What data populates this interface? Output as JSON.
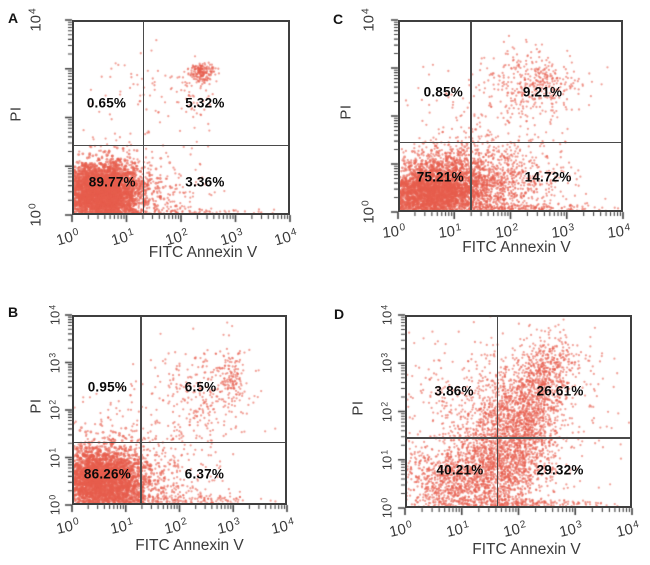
{
  "figure": {
    "title": "Annexin V-FITC / PI apoptosis flow cytometry dot plots",
    "colors": {
      "dots": "#e75d4d",
      "axis": "#3f3f3f",
      "gate_lines": "#4a4a4a",
      "text": "#0a0a0a"
    }
  },
  "chart_data": [
    {
      "type": "scatter",
      "panel": "A",
      "xlabel": "FITC Annexin V",
      "ylabel": "PI",
      "x_scale": "log",
      "y_scale": "log",
      "x_range": [
        1,
        10000
      ],
      "y_range": [
        1,
        10000
      ],
      "x_tick_labels": [
        {
          "label": "10^0",
          "decade": 0
        },
        {
          "label": "10^1",
          "decade": 1
        },
        {
          "label": "10^2",
          "decade": 2
        },
        {
          "label": "10^3",
          "decade": 3
        },
        {
          "label": "10^4",
          "decade": 4
        }
      ],
      "y_tick_labels": [
        {
          "label": "10^0",
          "decade": 0
        },
        {
          "label": "10^4",
          "decade": 4
        }
      ],
      "gate": {
        "x_decade": 1.3,
        "y_decade": 1.44
      },
      "quadrants": {
        "upper_left": {
          "label": "0.65%",
          "value": 0.65
        },
        "upper_right": {
          "label": "5.32%",
          "value": 5.32
        },
        "lower_left": {
          "label": "89.77%",
          "value": 89.77
        },
        "lower_right": {
          "label": "3.36%",
          "value": 3.36
        }
      },
      "point_clusters": [
        {
          "n": 3000,
          "cx": 0.55,
          "cy": 0.45,
          "sx": 0.36,
          "sy": 0.3
        },
        {
          "n": 700,
          "cx": 0.75,
          "cy": 0.55,
          "sx": 0.62,
          "sy": 0.45
        },
        {
          "n": 70,
          "cx": 1.7,
          "cy": 0.35,
          "sx": 0.45,
          "sy": 0.28
        },
        {
          "n": 110,
          "cx": 2.0,
          "cy": 0.06,
          "sx": 0.85,
          "sy": 0.04
        },
        {
          "n": 170,
          "cx": 2.38,
          "cy": 2.92,
          "sx": 0.12,
          "sy": 0.1
        },
        {
          "n": 55,
          "cx": 2.25,
          "cy": 2.5,
          "sx": 0.22,
          "sy": 0.38
        },
        {
          "n": 48,
          "cx": 1.5,
          "cy": 2.45,
          "sx": 0.45,
          "sy": 0.45
        },
        {
          "n": 12,
          "cx": 0.75,
          "cy": 2.5,
          "sx": 0.4,
          "sy": 0.35
        }
      ]
    },
    {
      "type": "scatter",
      "panel": "B",
      "xlabel": "FITC Annexin V",
      "ylabel": "PI",
      "x_scale": "log",
      "y_scale": "log",
      "x_range": [
        1,
        10000
      ],
      "y_range": [
        1,
        10000
      ],
      "x_tick_labels": [
        {
          "label": "10^0",
          "decade": 0
        },
        {
          "label": "10^1",
          "decade": 1
        },
        {
          "label": "10^2",
          "decade": 2
        },
        {
          "label": "10^3",
          "decade": 3
        },
        {
          "label": "10^4",
          "decade": 4
        }
      ],
      "y_tick_labels": [
        {
          "label": "10^0",
          "decade": 0
        },
        {
          "label": "10^1",
          "decade": 1
        },
        {
          "label": "10^2",
          "decade": 2
        },
        {
          "label": "10^3",
          "decade": 3
        },
        {
          "label": "10^4",
          "decade": 4
        }
      ],
      "gate": {
        "x_decade": 1.27,
        "y_decade": 1.33
      },
      "quadrants": {
        "upper_left": {
          "label": "0.95%",
          "value": 0.95
        },
        "upper_right": {
          "label": "6.5%",
          "value": 6.5
        },
        "lower_left": {
          "label": "86.26%",
          "value": 86.26
        },
        "lower_right": {
          "label": "6.37%",
          "value": 6.37
        }
      },
      "point_clusters": [
        {
          "n": 2600,
          "cx": 0.55,
          "cy": 0.5,
          "sx": 0.4,
          "sy": 0.36
        },
        {
          "n": 700,
          "cx": 0.8,
          "cy": 0.65,
          "sx": 0.7,
          "sy": 0.55
        },
        {
          "n": 200,
          "cx": 1.9,
          "cy": 0.1,
          "sx": 0.85,
          "sy": 0.08
        },
        {
          "n": 90,
          "cx": 1.8,
          "cy": 0.5,
          "sx": 0.5,
          "sy": 0.35
        },
        {
          "n": 240,
          "cx": 2.5,
          "cy": 2.4,
          "sx": 0.5,
          "sy": 0.5
        },
        {
          "n": 110,
          "cx": 2.95,
          "cy": 2.7,
          "sx": 0.13,
          "sy": 0.25
        },
        {
          "n": 90,
          "cx": 2.0,
          "cy": 1.6,
          "sx": 0.55,
          "sy": 0.6
        },
        {
          "n": 28,
          "cx": 0.85,
          "cy": 2.1,
          "sx": 0.5,
          "sy": 0.45
        }
      ]
    },
    {
      "type": "scatter",
      "panel": "C",
      "xlabel": "FITC Annexin V",
      "ylabel": "PI",
      "x_scale": "log",
      "y_scale": "log",
      "x_range": [
        1,
        10000
      ],
      "y_range": [
        1,
        10000
      ],
      "x_tick_labels": [
        {
          "label": "10^0",
          "decade": 0
        },
        {
          "label": "10^1",
          "decade": 1
        },
        {
          "label": "10^2",
          "decade": 2
        },
        {
          "label": "10^3",
          "decade": 3
        },
        {
          "label": "10^4",
          "decade": 4
        }
      ],
      "y_tick_labels": [
        {
          "label": "10^0",
          "decade": 0
        },
        {
          "label": "10^4",
          "decade": 4
        }
      ],
      "gate": {
        "x_decade": 1.28,
        "y_decade": 1.46
      },
      "quadrants": {
        "upper_left": {
          "label": "0.85%",
          "value": 0.85
        },
        "upper_right": {
          "label": "9.21%",
          "value": 9.21
        },
        "lower_left": {
          "label": "75.21%",
          "value": 75.21
        },
        "lower_right": {
          "label": "14.72%",
          "value": 14.72
        }
      },
      "point_clusters": [
        {
          "n": 2200,
          "cx": 0.6,
          "cy": 0.4,
          "sx": 0.45,
          "sy": 0.3
        },
        {
          "n": 1000,
          "cx": 1.45,
          "cy": 0.6,
          "sx": 0.5,
          "sy": 0.38
        },
        {
          "n": 350,
          "cx": 1.05,
          "cy": 1.05,
          "sx": 0.6,
          "sy": 0.3
        },
        {
          "n": 180,
          "cx": 2.4,
          "cy": 0.6,
          "sx": 0.5,
          "sy": 0.4
        },
        {
          "n": 220,
          "cx": 2.2,
          "cy": 0.07,
          "sx": 0.75,
          "sy": 0.05
        },
        {
          "n": 330,
          "cx": 2.45,
          "cy": 2.7,
          "sx": 0.42,
          "sy": 0.33
        },
        {
          "n": 140,
          "cx": 1.95,
          "cy": 1.9,
          "sx": 0.5,
          "sy": 0.55
        },
        {
          "n": 32,
          "cx": 0.75,
          "cy": 2.4,
          "sx": 0.5,
          "sy": 0.45
        }
      ]
    },
    {
      "type": "scatter",
      "panel": "D",
      "xlabel": "FITC Annexin V",
      "ylabel": "PI",
      "x_scale": "log",
      "y_scale": "log",
      "x_range": [
        1,
        10000
      ],
      "y_range": [
        1,
        10000
      ],
      "x_tick_labels": [
        {
          "label": "10^0",
          "decade": 0
        },
        {
          "label": "10^1",
          "decade": 1
        },
        {
          "label": "10^2",
          "decade": 2
        },
        {
          "label": "10^3",
          "decade": 3
        },
        {
          "label": "10^4",
          "decade": 4
        }
      ],
      "y_tick_labels": [
        {
          "label": "10^0",
          "decade": 0
        },
        {
          "label": "10^1",
          "decade": 1
        },
        {
          "label": "10^2",
          "decade": 2
        },
        {
          "label": "10^3",
          "decade": 3
        },
        {
          "label": "10^4",
          "decade": 4
        }
      ],
      "gate": {
        "x_decade": 1.62,
        "y_decade": 1.47
      },
      "quadrants": {
        "upper_left": {
          "label": "3.86%",
          "value": 3.86
        },
        "upper_right": {
          "label": "26.61%",
          "value": 26.61
        },
        "lower_left": {
          "label": "40.21%",
          "value": 40.21
        },
        "lower_right": {
          "label": "29.32%",
          "value": 29.32
        }
      },
      "point_clusters": [
        {
          "n": 1200,
          "cx": 0.95,
          "cy": 0.6,
          "sx": 0.55,
          "sy": 0.4
        },
        {
          "n": 1600,
          "cx": 1.8,
          "cy": 1.2,
          "sx": 0.38,
          "sy": 0.8
        },
        {
          "n": 900,
          "cx": 2.25,
          "cy": 2.1,
          "sx": 0.32,
          "sy": 0.65,
          "slope": 0.18
        },
        {
          "n": 260,
          "cx": 2.55,
          "cy": 2.95,
          "sx": 0.28,
          "sy": 0.3
        },
        {
          "n": 260,
          "cx": 1.9,
          "cy": 0.08,
          "sx": 0.95,
          "sy": 0.06
        },
        {
          "n": 150,
          "cx": 0.95,
          "cy": 2.3,
          "sx": 0.55,
          "sy": 0.5
        },
        {
          "n": 450,
          "cx": 1.7,
          "cy": 1.5,
          "sx": 0.95,
          "sy": 0.95
        }
      ]
    }
  ]
}
